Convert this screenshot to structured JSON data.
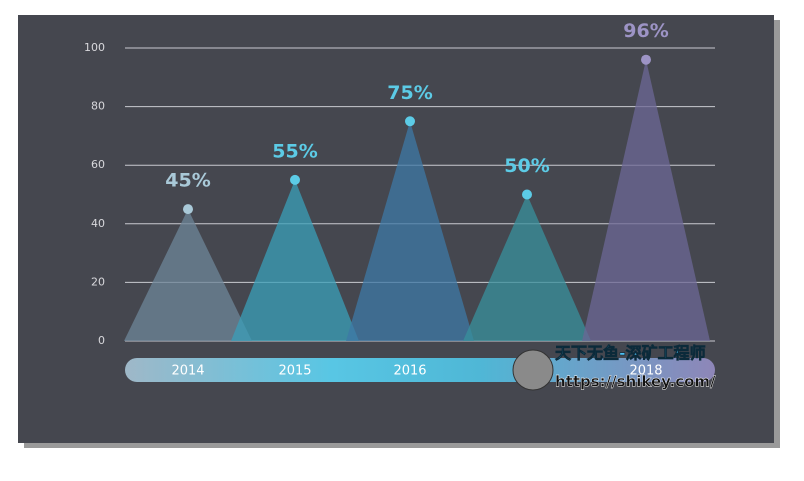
{
  "chart_data": {
    "type": "cone",
    "categories": [
      "2014",
      "2015",
      "2016",
      null,
      "2018"
    ],
    "values": [
      45,
      55,
      75,
      50,
      96
    ],
    "value_labels": [
      "45%",
      "55%",
      "75%",
      "50%",
      "96%"
    ],
    "colors": [
      "#6d8598",
      "#3a9fb8",
      "#3d78a6",
      "#38909c",
      "#6c6795"
    ],
    "label_colors": [
      "#a9c9d8",
      "#5ccbe6",
      "#5ccbe6",
      "#5ccbe6",
      "#9d94c6"
    ],
    "ylim": [
      0,
      100
    ],
    "yticks": [
      0,
      20,
      40,
      60,
      80,
      100
    ],
    "grid": true,
    "annotations": [
      "天下无鱼-深矿工程师",
      "https://shikey.com/"
    ]
  }
}
